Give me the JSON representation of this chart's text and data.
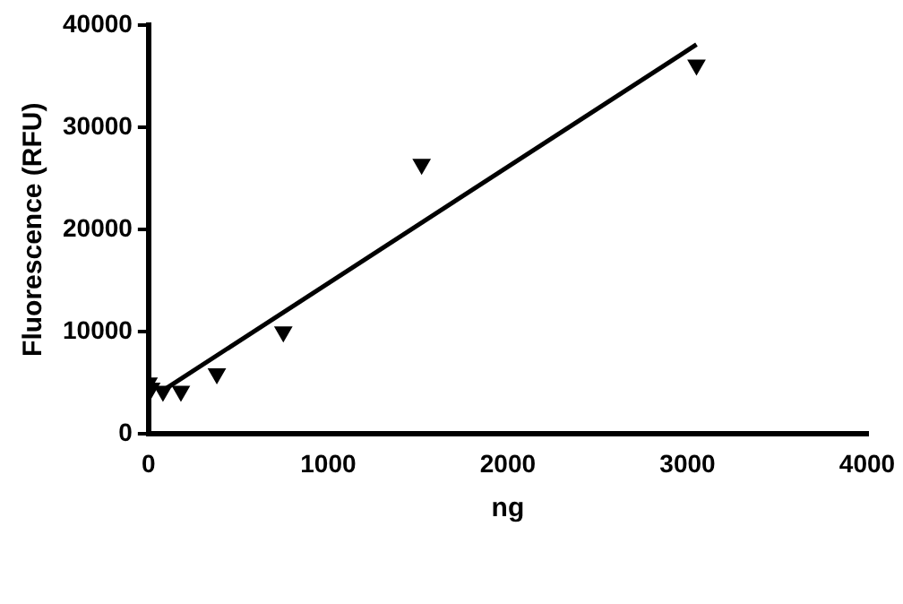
{
  "chart_data": {
    "type": "scatter",
    "xlabel": "ng",
    "ylabel": "Fluorescence (RFU)",
    "xlim": [
      0,
      4000
    ],
    "xticks": [
      0,
      1000,
      2000,
      3000,
      4000
    ],
    "ylim": [
      0,
      40000
    ],
    "yticks": [
      0,
      10000,
      20000,
      30000,
      40000
    ],
    "grid": false,
    "legend": false,
    "marker": "triangle",
    "series": [
      {
        "color": "#000000",
        "x": [
          0,
          15,
          80,
          180,
          380,
          750,
          1520,
          3050
        ],
        "values": [
          5000,
          4500,
          4200,
          4200,
          5900,
          10000,
          26400,
          36100
        ]
      },
      {
        "type": "line",
        "color": "#000000",
        "x": [
          100,
          3050
        ],
        "values": [
          4500,
          38100
        ],
        "marker": "none"
      }
    ]
  }
}
